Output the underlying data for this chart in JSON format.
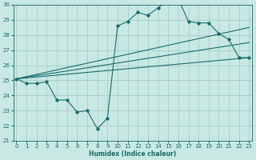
{
  "xlabel": "Humidex (Indice chaleur)",
  "ylabel": "",
  "bg_color": "#c8e8e4",
  "grid_color": "#a0c8c4",
  "line_color": "#1a6b6b",
  "x_min": 0,
  "x_max": 23,
  "y_min": 21,
  "y_max": 30,
  "x_ticks": [
    0,
    1,
    2,
    3,
    4,
    5,
    6,
    7,
    8,
    9,
    10,
    11,
    12,
    13,
    14,
    15,
    16,
    17,
    18,
    19,
    20,
    21,
    22,
    23
  ],
  "y_ticks": [
    21,
    22,
    23,
    24,
    25,
    26,
    27,
    28,
    29,
    30
  ],
  "line1_x": [
    0,
    1,
    2,
    3,
    4,
    5,
    6,
    7,
    8,
    9,
    10,
    11,
    12,
    13,
    14,
    15,
    16,
    17,
    18,
    19,
    20,
    21,
    22,
    23
  ],
  "line1_y": [
    25.1,
    24.8,
    24.8,
    24.9,
    23.7,
    23.7,
    22.9,
    23.0,
    21.8,
    22.5,
    28.6,
    28.9,
    29.5,
    29.3,
    29.8,
    30.3,
    30.4,
    28.9,
    28.8,
    28.8,
    28.1,
    27.7,
    26.5,
    26.5
  ],
  "line2_x": [
    0,
    23
  ],
  "line2_y": [
    25.1,
    28.5
  ],
  "line3_x": [
    0,
    23
  ],
  "line3_y": [
    25.1,
    27.5
  ],
  "line4_x": [
    0,
    23
  ],
  "line4_y": [
    25.1,
    26.5
  ],
  "tick_fontsize": 5.0,
  "xlabel_fontsize": 5.5
}
